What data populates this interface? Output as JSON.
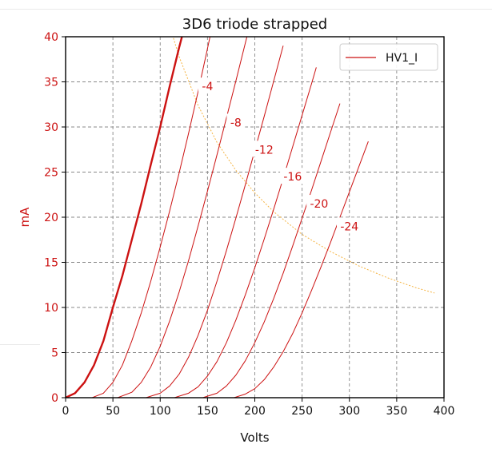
{
  "chart_data": {
    "type": "line",
    "title": "3D6 triode strapped",
    "xlabel": "Volts",
    "ylabel": "mA",
    "xlim": [
      0,
      400
    ],
    "ylim": [
      0,
      40
    ],
    "xticks": [
      0,
      50,
      100,
      150,
      200,
      250,
      300,
      350,
      400
    ],
    "yticks": [
      0,
      5,
      10,
      15,
      20,
      25,
      30,
      35,
      40
    ],
    "grid": true,
    "legend": {
      "placement": "top-right",
      "entries": [
        "HV1_I"
      ]
    },
    "colors": {
      "curves": "#cc1111",
      "axis_text": "#cc1111",
      "load_line": "#f5b340",
      "grid": "#888888"
    },
    "series": [
      {
        "name": "HV1_I",
        "grid_voltage": "0",
        "bold": true,
        "x": [
          0,
          10,
          20,
          30,
          40,
          50,
          60,
          70,
          80,
          90,
          100,
          110,
          120,
          123
        ],
        "y": [
          0,
          0.5,
          1.7,
          3.6,
          6.3,
          10,
          13.5,
          17.5,
          21.5,
          25.8,
          30,
          34.5,
          38.8,
          40
        ]
      },
      {
        "grid_voltage": "-4",
        "x": [
          28,
          40,
          50,
          60,
          70,
          80,
          90,
          100,
          110,
          120,
          130,
          140,
          150,
          160
        ],
        "y": [
          0,
          0.5,
          1.7,
          3.6,
          6.3,
          9.4,
          12.9,
          16.7,
          20.7,
          24.9,
          29.3,
          33.9,
          38.7,
          43.6
        ]
      },
      {
        "grid_voltage": "-8",
        "x": [
          55,
          70,
          80,
          90,
          100,
          110,
          120,
          130,
          140,
          150,
          160,
          170,
          180,
          190,
          200
        ],
        "y": [
          0,
          0.6,
          1.7,
          3.4,
          5.7,
          8.5,
          11.7,
          15.2,
          19.0,
          22.9,
          26.9,
          31.0,
          35.1,
          39.3,
          43.5
        ]
      },
      {
        "grid_voltage": "-12",
        "x": [
          85,
          100,
          110,
          120,
          130,
          140,
          150,
          160,
          170,
          180,
          190,
          200,
          210,
          220,
          230
        ],
        "y": [
          0,
          0.5,
          1.3,
          2.6,
          4.5,
          6.9,
          9.7,
          12.9,
          16.3,
          19.9,
          23.6,
          27.4,
          31.2,
          35.1,
          39.0
        ]
      },
      {
        "grid_voltage": "-16",
        "x": [
          115,
          130,
          140,
          150,
          160,
          170,
          180,
          190,
          200,
          210,
          220,
          230,
          240,
          250,
          260,
          265
        ],
        "y": [
          0,
          0.5,
          1.2,
          2.4,
          4.0,
          6.1,
          8.6,
          11.4,
          14.4,
          17.6,
          20.9,
          24.3,
          27.8,
          31.3,
          34.8,
          36.6
        ]
      },
      {
        "grid_voltage": "-20",
        "x": [
          145,
          160,
          170,
          180,
          190,
          200,
          210,
          220,
          230,
          240,
          250,
          260,
          270,
          280,
          290
        ],
        "y": [
          0,
          0.5,
          1.3,
          2.5,
          4.1,
          6.1,
          8.4,
          11.0,
          13.8,
          16.8,
          19.9,
          23.0,
          26.2,
          29.4,
          32.6
        ]
      },
      {
        "grid_voltage": "-24",
        "x": [
          178,
          190,
          200,
          210,
          220,
          230,
          240,
          250,
          260,
          270,
          280,
          290,
          300,
          310,
          320
        ],
        "y": [
          0,
          0.4,
          1.0,
          2.0,
          3.4,
          5.1,
          7.1,
          9.4,
          11.9,
          14.5,
          17.2,
          20.0,
          22.8,
          25.6,
          28.4
        ]
      }
    ],
    "load_line": {
      "x": [
        110,
        120,
        140,
        160,
        180,
        200,
        220,
        250,
        280,
        310,
        340,
        370,
        390
      ],
      "y": [
        41.2,
        37.8,
        32.4,
        28.3,
        25.2,
        22.7,
        20.6,
        18.1,
        16.2,
        14.6,
        13.3,
        12.2,
        11.6
      ]
    },
    "curve_labels": [
      {
        "text": "-4",
        "x": 150,
        "y": 34.5
      },
      {
        "text": "-8",
        "x": 180,
        "y": 30.5
      },
      {
        "text": "-12",
        "x": 210,
        "y": 27.5
      },
      {
        "text": "-16",
        "x": 240,
        "y": 24.5
      },
      {
        "text": "-20",
        "x": 268,
        "y": 21.5
      },
      {
        "text": "-24",
        "x": 300,
        "y": 19.0
      }
    ]
  }
}
